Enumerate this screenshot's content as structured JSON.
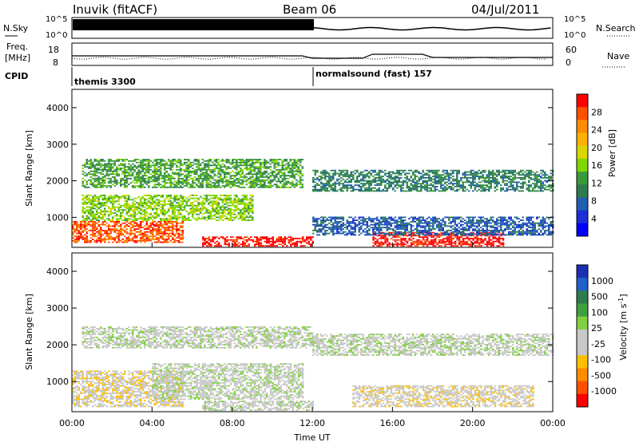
{
  "header": {
    "station": "Inuvik (fitACF)",
    "beam": "Beam 06",
    "date": "04/Jul/2011"
  },
  "noise_panel": {
    "left_label": "N.Sky",
    "right_label": "N.Search",
    "left_ticks": [
      "10^5",
      "10^0"
    ],
    "right_ticks": [
      "10^5",
      "10^0"
    ]
  },
  "freq_panel": {
    "left_label_1": "Freq.",
    "left_label_2": "[MHz]",
    "right_label": "Nave",
    "left_ticks": [
      "18",
      "8"
    ],
    "right_ticks": [
      "60",
      "0"
    ]
  },
  "cpid_panel": {
    "label": "CPID",
    "modes": [
      {
        "name": "themis 3300",
        "start_hour": 0
      },
      {
        "name": "normalsound (fast) 157",
        "start_hour": 12
      }
    ]
  },
  "power_panel": {
    "ylabel": "Slant Range [km]",
    "y_ticks": [
      "4000",
      "3000",
      "2000",
      "1000"
    ],
    "colorbar_label": "Power [dB]",
    "colorbar_ticks": [
      "28",
      "24",
      "20",
      "16",
      "12",
      "8",
      "4"
    ],
    "colors": [
      "#ff0000",
      "#ff5000",
      "#ff8c00",
      "#ffb000",
      "#d8d800",
      "#7fd800",
      "#3a9a3a",
      "#2e7b4f",
      "#1f5fb0",
      "#1a2fd8",
      "#0000ff"
    ]
  },
  "velocity_panel": {
    "ylabel": "Slant Range [km]",
    "y_ticks": [
      "4000",
      "3000",
      "2000",
      "1000"
    ],
    "colorbar_label": "Velocity [m s",
    "colorbar_label_sup": "-1",
    "colorbar_label_end": "]",
    "colorbar_ticks": [
      "1000",
      "500",
      "100",
      "25",
      "-25",
      "-100",
      "-500",
      "-1000"
    ],
    "colors": [
      "#1a2fb0",
      "#2060c8",
      "#2e7b4f",
      "#3ca03c",
      "#80d040",
      "#c8c8c8",
      "#c8c8c8",
      "#ffc000",
      "#ff8c00",
      "#ff5000",
      "#ff0000"
    ]
  },
  "x_axis": {
    "ticks": [
      "00:00",
      "04:00",
      "08:00",
      "12:00",
      "16:00",
      "20:00",
      "00:00"
    ],
    "label": "Time UT"
  },
  "chart_data": {
    "type": "heatmap",
    "title": "Inuvik (fitACF) Beam 06 04/Jul/2011",
    "xlabel": "Time UT",
    "ylabel": "Slant Range [km]",
    "xlim_hours": [
      0,
      24
    ],
    "ylim_km": [
      180,
      4500
    ],
    "panels": [
      {
        "name": "Power",
        "unit": "dB",
        "clim": [
          0,
          30
        ],
        "regions": [
          {
            "t0": 0,
            "t1": 5.5,
            "r0": 300,
            "r1": 900,
            "value": 28
          },
          {
            "t0": 0.5,
            "t1": 11.5,
            "r0": 1800,
            "r1": 2600,
            "value": 12
          },
          {
            "t0": 0.5,
            "t1": 9,
            "r0": 900,
            "r1": 1600,
            "value": 16
          },
          {
            "t0": 6.5,
            "t1": 12,
            "r0": 200,
            "r1": 450,
            "value": 30
          },
          {
            "t0": 12,
            "t1": 24,
            "r0": 1700,
            "r1": 2300,
            "value": 10
          },
          {
            "t0": 15,
            "t1": 21.5,
            "r0": 200,
            "r1": 600,
            "value": 30
          },
          {
            "t0": 12,
            "t1": 24,
            "r0": 500,
            "r1": 1000,
            "value": 6
          }
        ]
      },
      {
        "name": "Velocity",
        "unit": "m s-1",
        "clim": [
          -1000,
          1000
        ],
        "regions": [
          {
            "t0": 0,
            "t1": 5.5,
            "r0": 300,
            "r1": 1300,
            "value": -100
          },
          {
            "t0": 0.5,
            "t1": 12,
            "r0": 1900,
            "r1": 2500,
            "value": 0
          },
          {
            "t0": 4,
            "t1": 11.5,
            "r0": 500,
            "r1": 1500,
            "value": 100
          },
          {
            "t0": 12,
            "t1": 24,
            "r0": 1700,
            "r1": 2300,
            "value": 0
          },
          {
            "t0": 14,
            "t1": 23,
            "r0": 300,
            "r1": 900,
            "value": -100
          },
          {
            "t0": 6.5,
            "t1": 12,
            "r0": 200,
            "r1": 450,
            "value": 25
          }
        ]
      }
    ]
  }
}
